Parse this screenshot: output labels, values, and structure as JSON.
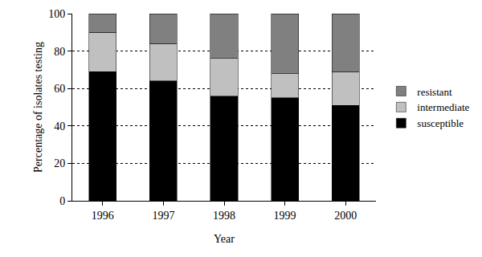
{
  "chart_data": {
    "type": "bar",
    "stacked": true,
    "grid": true,
    "legend": "right",
    "x_label": "Year",
    "y_label": "Percentage of isolates testing",
    "categories": [
      "1996",
      "1997",
      "1998",
      "1999",
      "2000"
    ],
    "series": [
      {
        "name": "susceptible",
        "color": "#000000",
        "values": [
          69,
          64,
          56,
          55,
          51
        ]
      },
      {
        "name": "intermediate",
        "color": "#c0c0c0",
        "values": [
          21,
          20,
          20,
          13,
          18
        ]
      },
      {
        "name": "resistant",
        "color": "#808080",
        "values": [
          10,
          16,
          24,
          32,
          31
        ]
      }
    ],
    "ylim": [
      0,
      100
    ],
    "yticks": [
      0,
      20,
      40,
      60,
      80,
      100
    ]
  }
}
